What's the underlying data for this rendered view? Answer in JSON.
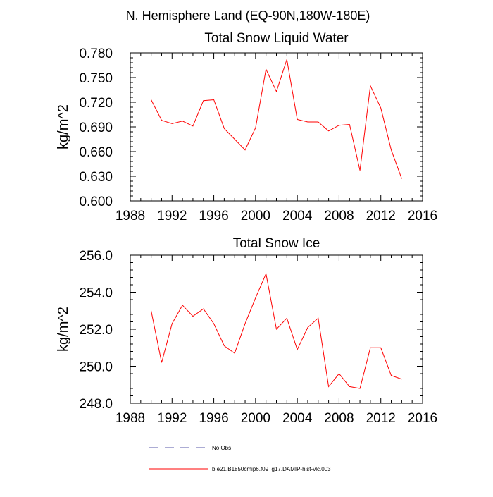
{
  "title": "N. Hemisphere Land (EQ-90N,180W-180E)",
  "legend": {
    "entries": [
      {
        "label": "No Obs",
        "color": "#5a5aa8",
        "dash": "dashed"
      },
      {
        "label": "b.e21.B1850cmip6.f09_g17.DAMIP-hist-vlc.003",
        "color": "#ff0000",
        "dash": "solid"
      }
    ]
  },
  "chart_data": [
    {
      "type": "line",
      "title": "Total Snow Liquid Water",
      "xlabel": "",
      "ylabel": "kg/m^2",
      "xlim": [
        1988,
        2016
      ],
      "ylim": [
        0.6,
        0.78
      ],
      "xticks": [
        1988,
        1992,
        1996,
        2000,
        2004,
        2008,
        2012,
        2016
      ],
      "yticks": [
        0.6,
        0.63,
        0.66,
        0.69,
        0.72,
        0.75,
        0.78
      ],
      "ytick_labels": [
        "0.600",
        "0.630",
        "0.660",
        "0.690",
        "0.720",
        "0.750",
        "0.780"
      ],
      "x": [
        1990,
        1991,
        1992,
        1993,
        1994,
        1995,
        1996,
        1997,
        1998,
        1999,
        2000,
        2001,
        2002,
        2003,
        2004,
        2005,
        2006,
        2007,
        2008,
        2009,
        2010,
        2011,
        2012,
        2013,
        2014
      ],
      "series": [
        {
          "name": "b.e21.B1850cmip6.f09_g17.DAMIP-hist-vlc.003",
          "color": "#ff0000",
          "values": [
            0.723,
            0.698,
            0.694,
            0.697,
            0.691,
            0.722,
            0.723,
            0.688,
            0.675,
            0.662,
            0.689,
            0.76,
            0.733,
            0.772,
            0.699,
            0.696,
            0.696,
            0.685,
            0.692,
            0.693,
            0.637,
            0.74,
            0.713,
            0.662,
            0.627
          ]
        }
      ],
      "grid": false
    },
    {
      "type": "line",
      "title": "Total Snow Ice",
      "xlabel": "",
      "ylabel": "kg/m^2",
      "xlim": [
        1988,
        2016
      ],
      "ylim": [
        248.0,
        256.0
      ],
      "xticks": [
        1988,
        1992,
        1996,
        2000,
        2004,
        2008,
        2012,
        2016
      ],
      "yticks": [
        248.0,
        250.0,
        252.0,
        254.0,
        256.0
      ],
      "ytick_labels": [
        "248.0",
        "250.0",
        "252.0",
        "254.0",
        "256.0"
      ],
      "x": [
        1990,
        1991,
        1992,
        1993,
        1994,
        1995,
        1996,
        1997,
        1998,
        1999,
        2000,
        2001,
        2002,
        2003,
        2004,
        2005,
        2006,
        2007,
        2008,
        2009,
        2010,
        2011,
        2012,
        2013,
        2014
      ],
      "series": [
        {
          "name": "b.e21.B1850cmip6.f09_g17.DAMIP-hist-vlc.003",
          "color": "#ff0000",
          "values": [
            253.0,
            250.2,
            252.3,
            253.3,
            252.7,
            253.1,
            252.3,
            251.1,
            250.7,
            252.3,
            253.7,
            255.0,
            252.0,
            252.6,
            250.9,
            252.1,
            252.6,
            248.9,
            249.6,
            248.9,
            248.8,
            251.0,
            251.0,
            249.5,
            249.3
          ]
        }
      ],
      "grid": false
    }
  ]
}
